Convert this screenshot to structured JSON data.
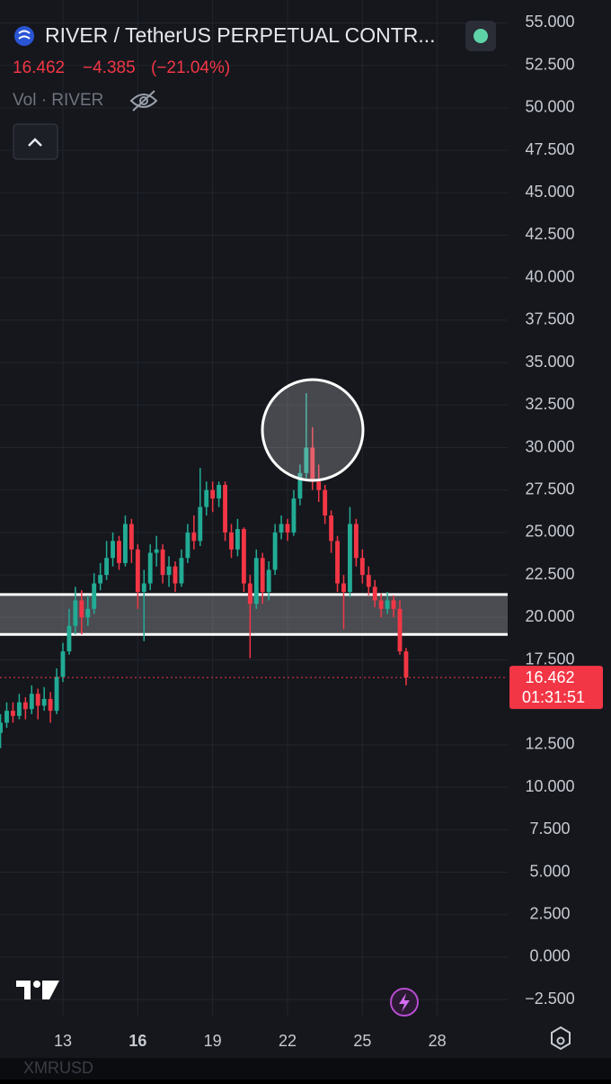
{
  "chart_data": {
    "type": "candlestick",
    "title": "RIVER / TetherUS PERPETUAL CONTR...",
    "last_price": 16.462,
    "change": {
      "value": -4.385,
      "label": "−4.385"
    },
    "change_pct": {
      "value": -21.04,
      "label": "(−21.04%)"
    },
    "volume_label": "Vol · RIVER",
    "countdown": "01:31:51",
    "watermark": "XMRUSD",
    "up_color": "#22ab94",
    "down_color": "#f23645",
    "grid": true,
    "zone": {
      "low": 19.0,
      "high": 21.35
    },
    "xlim": [
      10.48,
      30.82
    ],
    "xticks": [
      13,
      16,
      19,
      22,
      25,
      28
    ],
    "ylim": [
      56.35,
      -3.5
    ],
    "yticks": [
      {
        "value": 55,
        "label": "55.000"
      },
      {
        "value": 52.5,
        "label": "52.500"
      },
      {
        "value": 50,
        "label": "50.000"
      },
      {
        "value": 47.5,
        "label": "47.500"
      },
      {
        "value": 45,
        "label": "45.000"
      },
      {
        "value": 42.5,
        "label": "42.500"
      },
      {
        "value": 40,
        "label": "40.000"
      },
      {
        "value": 37.5,
        "label": "37.500"
      },
      {
        "value": 35,
        "label": "35.000"
      },
      {
        "value": 32.5,
        "label": "32.500"
      },
      {
        "value": 30,
        "label": "30.000"
      },
      {
        "value": 27.5,
        "label": "27.500"
      },
      {
        "value": 25,
        "label": "25.000"
      },
      {
        "value": 22.5,
        "label": "22.500"
      },
      {
        "value": 20,
        "label": "20.000"
      },
      {
        "value": 17.5,
        "label": "17.500"
      },
      {
        "value": 12.5,
        "label": "12.500"
      },
      {
        "value": 10,
        "label": "10.000"
      },
      {
        "value": 7.5,
        "label": "7.500"
      },
      {
        "value": 5,
        "label": "5.000"
      },
      {
        "value": 2.5,
        "label": "2.500"
      },
      {
        "value": 0,
        "label": "0.000"
      },
      {
        "value": -2.5,
        "label": "−2.500"
      }
    ],
    "x": [
      10.5,
      10.75,
      11,
      11.25,
      11.5,
      11.75,
      12,
      12.25,
      12.5,
      12.75,
      13,
      13.25,
      13.5,
      13.75,
      14,
      14.25,
      14.5,
      14.75,
      15,
      15.25,
      15.5,
      15.75,
      16,
      16.25,
      16.5,
      16.75,
      17,
      17.25,
      17.5,
      17.75,
      18,
      18.25,
      18.5,
      18.75,
      19,
      19.25,
      19.5,
      19.75,
      20,
      20.25,
      20.5,
      20.75,
      21,
      21.25,
      21.5,
      21.75,
      22,
      22.25,
      22.5,
      22.75,
      23,
      23.25,
      23.5,
      23.75,
      24,
      24.25,
      24.5,
      24.75,
      25,
      25.25,
      25.5,
      25.75,
      26,
      26.25,
      26.5,
      26.75
    ],
    "open": [
      13.2,
      13.8,
      14.5,
      14.2,
      15.0,
      14.6,
      15.5,
      14.8,
      15.2,
      14.5,
      16.5,
      18.0,
      19.5,
      21.0,
      20.0,
      20.5,
      22.0,
      22.5,
      23.5,
      24.5,
      23.2,
      25.5,
      24.0,
      21.5,
      22.0,
      23.8,
      24.0,
      22.5,
      23.0,
      22.0,
      23.5,
      25.0,
      24.5,
      26.5,
      27.5,
      27.0,
      27.8,
      25.0,
      24.0,
      25.2,
      22.0,
      20.8,
      23.5,
      21.5,
      22.8,
      25.0,
      25.5,
      25.0,
      27.0,
      28.5,
      30.0,
      28.0,
      27.5,
      26.0,
      24.5,
      22.0,
      21.5,
      25.5,
      23.5,
      22.5,
      21.8,
      21.0,
      20.5,
      21.0,
      20.5,
      18.0
    ],
    "high": [
      14.3,
      15.0,
      15.0,
      15.5,
      15.3,
      16.0,
      15.8,
      15.9,
      15.6,
      17.0,
      18.5,
      20.5,
      21.8,
      21.6,
      21.3,
      22.6,
      23.2,
      24.5,
      25.0,
      24.8,
      26.0,
      25.8,
      24.3,
      22.8,
      24.3,
      24.8,
      24.3,
      23.6,
      23.3,
      24.0,
      25.5,
      26.0,
      28.8,
      28.0,
      28.0,
      28.0,
      28.0,
      25.5,
      25.8,
      25.3,
      22.5,
      24.0,
      23.8,
      23.3,
      25.5,
      26.0,
      25.8,
      27.5,
      29.0,
      33.2,
      31.2,
      29.0,
      27.8,
      26.3,
      24.8,
      22.5,
      26.5,
      25.8,
      24.0,
      23.0,
      22.2,
      21.4,
      21.5,
      21.3,
      21.0,
      18.2
    ],
    "low": [
      12.3,
      13.5,
      13.8,
      14.0,
      14.0,
      14.3,
      14.0,
      14.5,
      13.8,
      14.3,
      16.2,
      17.8,
      19.0,
      19.0,
      19.5,
      20.2,
      21.6,
      22.2,
      23.0,
      22.8,
      23.0,
      23.2,
      20.5,
      18.6,
      21.6,
      23.0,
      22.0,
      21.8,
      21.5,
      21.8,
      23.2,
      24.0,
      24.2,
      26.0,
      26.2,
      26.5,
      24.5,
      23.5,
      23.6,
      21.5,
      17.6,
      20.5,
      20.8,
      21.0,
      22.5,
      24.6,
      24.5,
      24.8,
      26.6,
      28.2,
      27.5,
      26.8,
      25.5,
      23.8,
      21.5,
      19.3,
      21.2,
      23.0,
      22.0,
      21.3,
      20.6,
      20.0,
      20.2,
      20.0,
      17.8,
      16.0
    ],
    "close": [
      13.8,
      14.5,
      14.2,
      15.0,
      14.6,
      15.5,
      14.8,
      15.2,
      14.5,
      16.5,
      18.0,
      19.5,
      21.0,
      20.0,
      20.5,
      22.0,
      22.5,
      23.5,
      24.5,
      23.2,
      25.5,
      24.0,
      21.5,
      22.0,
      23.8,
      24.0,
      22.5,
      23.0,
      22.0,
      23.5,
      25.0,
      24.5,
      26.5,
      27.5,
      27.0,
      27.8,
      25.0,
      24.0,
      25.2,
      22.0,
      20.8,
      23.5,
      21.5,
      22.8,
      25.0,
      25.5,
      25.0,
      27.0,
      28.5,
      30.0,
      28.0,
      27.5,
      26.0,
      24.5,
      22.0,
      21.5,
      25.5,
      23.5,
      22.5,
      21.8,
      21.0,
      20.5,
      21.0,
      20.5,
      18.0,
      16.462
    ]
  }
}
